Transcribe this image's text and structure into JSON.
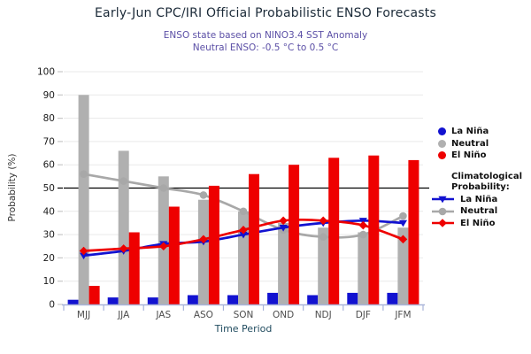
{
  "title": "Early-Jun CPC/IRI Official Probabilistic ENSO Forecasts",
  "subtitle1": "ENSO state based on NINO3.4 SST Anomaly",
  "subtitle2": "Neutral ENSO: -0.5 °C to 0.5 °C",
  "colors": {
    "la_nina": "#1212d0",
    "neutral_bar": "#b0b0b0",
    "neutral_line": "#a8a8a8",
    "el_nino": "#ee0000",
    "grid": "#e9e9e9",
    "y_tick": "#c8c8c8",
    "axis": "#a9b4d8",
    "reference_line": "#000000",
    "title_text": "#1b2a38",
    "subtitle_text": "#5b4fa6",
    "xlabel_text": "#224d60",
    "ylabel_text": "#333333",
    "x_tick_label": "#4d4d4d",
    "y_tick_label": "#1a1a1a"
  },
  "chart_data": {
    "type": "bar+line",
    "title": "Early-Jun CPC/IRI Official Probabilistic ENSO Forecasts",
    "categories": [
      "MJJ",
      "JJA",
      "JAS",
      "ASO",
      "SON",
      "OND",
      "NDJ",
      "DJF",
      "JFM"
    ],
    "bar_series": [
      {
        "name": "La Niña",
        "color_key": "la_nina",
        "values": [
          2,
          3,
          3,
          4,
          4,
          5,
          4,
          5,
          5
        ]
      },
      {
        "name": "Neutral",
        "color_key": "neutral_bar",
        "values": [
          90,
          66,
          55,
          45,
          40,
          35,
          33,
          31,
          33
        ]
      },
      {
        "name": "El Niño",
        "color_key": "el_nino",
        "values": [
          8,
          31,
          42,
          51,
          56,
          60,
          63,
          64,
          62
        ]
      }
    ],
    "line_series": [
      {
        "name": "Climatological Probability: Neutral",
        "color_key": "neutral_line",
        "marker": "circle",
        "values": [
          56,
          53,
          50,
          47,
          40,
          32,
          29,
          30,
          38
        ]
      },
      {
        "name": "Climatological Probability: La Niña",
        "color_key": "la_nina",
        "marker": "triangle-down",
        "values": [
          21,
          23,
          26,
          27,
          30,
          33,
          35,
          36,
          35
        ]
      },
      {
        "name": "Climatological Probability: El Niño",
        "color_key": "el_nino",
        "marker": "diamond",
        "values": [
          23,
          24,
          25,
          28,
          32,
          36,
          36,
          34,
          28
        ]
      }
    ],
    "xlabel": "Time Period",
    "ylabel": "Probability (%)",
    "ylim": [
      0,
      100
    ],
    "yticks": [
      0,
      10,
      20,
      30,
      40,
      50,
      60,
      70,
      80,
      90,
      100
    ],
    "grid": true,
    "reference_line_y": 50,
    "legend_position": "right"
  },
  "legend": {
    "bar_items": [
      {
        "label": "La Niña",
        "color_key": "la_nina"
      },
      {
        "label": "Neutral",
        "color_key": "neutral_bar"
      },
      {
        "label": "El Niño",
        "color_key": "el_nino"
      }
    ],
    "clim_header_line1": "Climatological",
    "clim_header_line2": "Probability:",
    "line_items": [
      {
        "label": "La Niña",
        "marker": "triangle-down",
        "color_key": "la_nina"
      },
      {
        "label": "Neutral",
        "marker": "circle",
        "color_key": "neutral_line"
      },
      {
        "label": "El Niño",
        "marker": "diamond",
        "color_key": "el_nino"
      }
    ]
  }
}
